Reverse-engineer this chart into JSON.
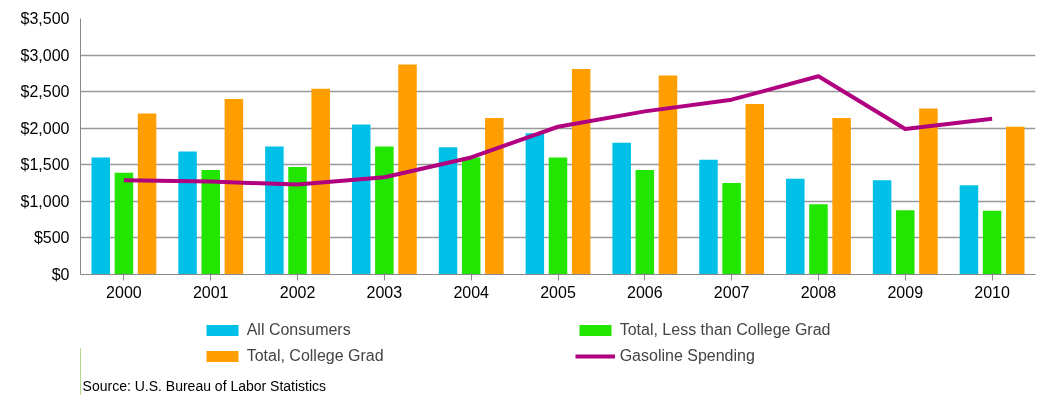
{
  "chart_data": {
    "type": "bar",
    "categories": [
      "2000",
      "2001",
      "2002",
      "2003",
      "2004",
      "2005",
      "2006",
      "2007",
      "2008",
      "2009",
      "2010"
    ],
    "series": [
      {
        "name": "All Consumers",
        "color": "#00c0e8",
        "values": [
          1600,
          1680,
          1750,
          2050,
          1740,
          1930,
          1800,
          1570,
          1310,
          1290,
          1220
        ]
      },
      {
        "name": "Total, Less than College Grad",
        "color": "#22e500",
        "values": [
          1390,
          1430,
          1470,
          1750,
          1600,
          1600,
          1430,
          1250,
          960,
          880,
          870
        ]
      },
      {
        "name": "Total, College Grad",
        "color": "#ff9e00",
        "values": [
          2200,
          2400,
          2540,
          2870,
          2140,
          2810,
          2720,
          2330,
          2140,
          2270,
          2020
        ]
      },
      {
        "name": "Gasoline Spending",
        "type": "line",
        "color": "#b0007f",
        "values": [
          1290,
          1270,
          1230,
          1330,
          1600,
          2020,
          2230,
          2390,
          2710,
          1990,
          2130
        ]
      }
    ],
    "ylim": [
      0,
      3500
    ],
    "yticks": [
      {
        "value": 0,
        "label": "$0"
      },
      {
        "value": 500,
        "label": "$500"
      },
      {
        "value": 1000,
        "label": "$1,000"
      },
      {
        "value": 1500,
        "label": "$1,500"
      },
      {
        "value": 2000,
        "label": "$2,000"
      },
      {
        "value": 2500,
        "label": "$2,500"
      },
      {
        "value": 3000,
        "label": "$3,000"
      },
      {
        "value": 3500,
        "label": "$3,500"
      }
    ],
    "grid": "y",
    "legend": "bottom",
    "annotations": [
      "Source:  U.S. Bureau of Labor Statistics"
    ]
  }
}
